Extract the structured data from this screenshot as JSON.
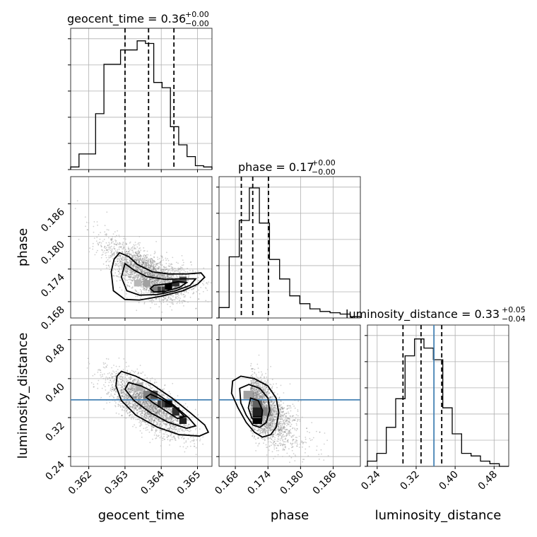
{
  "chart_data": {
    "type": "corner",
    "parameters": [
      {
        "name": "geocent_time",
        "title": "geocent_time = 0.36",
        "title_plus": "+0.00",
        "title_minus": "−0.00",
        "range": [
          0.3615,
          0.3654
        ],
        "ticks": [
          "0.362",
          "0.363",
          "0.364",
          "0.365"
        ],
        "tick_values": [
          0.362,
          0.363,
          0.364,
          0.365
        ],
        "quantiles": [
          0.363,
          0.36365,
          0.36435
        ],
        "hist": [
          0.02,
          0.12,
          0.12,
          0.43,
          0.81,
          0.81,
          0.92,
          0.92,
          0.99,
          0.97,
          0.67,
          0.63,
          0.33,
          0.19,
          0.1,
          0.03,
          0.02
        ]
      },
      {
        "name": "phase",
        "title": "phase = 0.17",
        "title_plus": "+0.00",
        "title_minus": "−0.00",
        "range": [
          0.165,
          0.191
        ],
        "ticks": [
          "0.168",
          "0.174",
          "0.180",
          "0.186"
        ],
        "tick_values": [
          0.168,
          0.174,
          0.18,
          0.186
        ],
        "quantiles": [
          0.1691,
          0.1712,
          0.1741
        ],
        "hist": [
          0.08,
          0.47,
          0.75,
          1.0,
          0.73,
          0.45,
          0.3,
          0.17,
          0.11,
          0.07,
          0.05,
          0.04,
          0.03,
          0.01
        ]
      },
      {
        "name": "luminosity_distance",
        "title": "luminosity_distance = 0.33",
        "title_plus": "+0.05",
        "title_minus": "−0.04",
        "range": [
          0.22,
          0.51
        ],
        "ticks": [
          "0.24",
          "0.32",
          "0.40",
          "0.48"
        ],
        "tick_values": [
          0.24,
          0.32,
          0.4,
          0.48
        ],
        "quantiles": [
          0.293,
          0.33,
          0.3725
        ],
        "truth": 0.3565,
        "hist": [
          0.04,
          0.1,
          0.3,
          0.52,
          0.85,
          0.98,
          0.91,
          0.82,
          0.45,
          0.25,
          0.1,
          0.08,
          0.04,
          0.02,
          0.0
        ]
      }
    ],
    "truth_color": "#4682b4",
    "grid": true,
    "hist_color": "#000000"
  }
}
